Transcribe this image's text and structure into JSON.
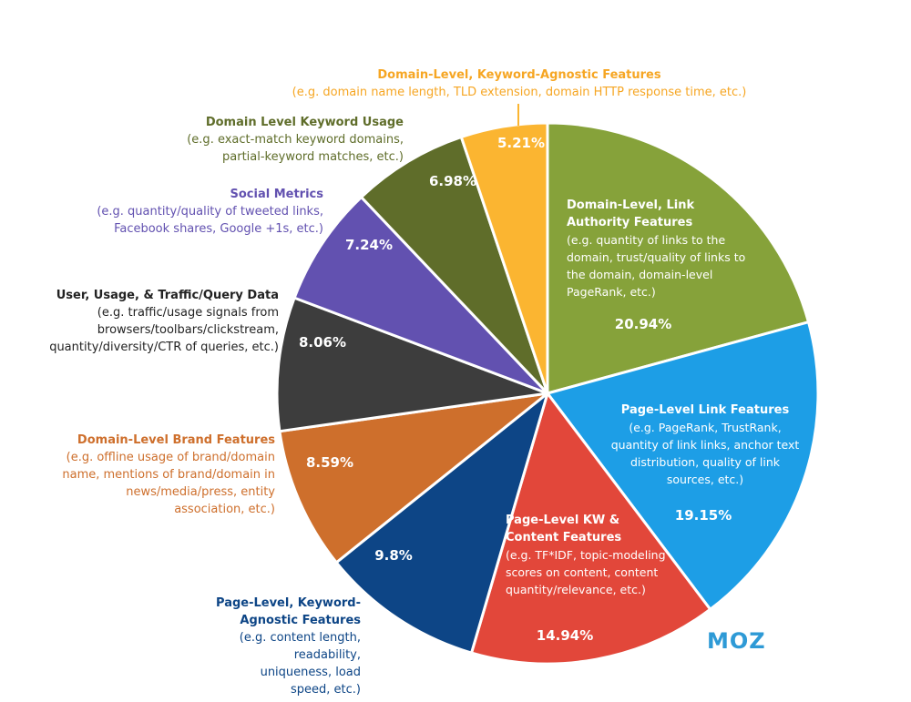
{
  "chart_data": {
    "type": "pie",
    "start_angle_deg": 0,
    "direction": "clockwise",
    "slices": [
      {
        "title": "Domain-Level, Link Authority Features",
        "description": "(e.g. quantity of links to the domain, trust/quality of links to the domain, domain-level PageRank, etc.)",
        "value": 20.94,
        "value_label": "20.94%",
        "color": "#86a23a"
      },
      {
        "title": "Page-Level Link Features",
        "description": "(e.g. PageRank, TrustRank, quantity of link links, anchor text distribution, quality of link sources, etc.)",
        "value": 19.15,
        "value_label": "19.15%",
        "color": "#1d9ee6"
      },
      {
        "title": "Page-Level KW & Content Features",
        "description": "(e.g. TF*IDF, topic-modeling scores on content, content quantity/relevance, etc.)",
        "value": 14.94,
        "value_label": "14.94%",
        "color": "#e2473a"
      },
      {
        "title": "Page-Level, Keyword-Agnostic Features",
        "description": "(e.g. content length, readability, uniqueness, load speed, etc.)",
        "value": 9.8,
        "value_label": "9.8%",
        "color": "#0d4586"
      },
      {
        "title": "Domain-Level Brand Features",
        "description": "(e.g. offline usage of brand/domain name, mentions of brand/domain in news/media/press, entity association, etc.)",
        "value": 8.59,
        "value_label": "8.59%",
        "color": "#ce6f2c"
      },
      {
        "title": "User, Usage, & Traffic/Query Data",
        "description": "(e.g. traffic/usage signals from browsers/toolbars/clickstream, quantity/diversity/CTR of queries, etc.)",
        "value": 8.06,
        "value_label": "8.06%",
        "color": "#3d3d3d"
      },
      {
        "title": "Social Metrics",
        "description": "(e.g. quantity/quality of tweeted links, Facebook shares, Google +1s, etc.)",
        "value": 7.24,
        "value_label": "7.24%",
        "color": "#6251b0"
      },
      {
        "title": "Domain Level Keyword Usage",
        "description": "(e.g. exact-match keyword domains, partial-keyword matches, etc.)",
        "value": 6.98,
        "value_label": "6.98%",
        "color": "#5f6d2a"
      },
      {
        "title": "Domain-Level, Keyword-Agnostic Features",
        "description": "(e.g. domain name length, TLD extension, domain HTTP response time, etc.)",
        "value": 5.21,
        "value_label": "5.21%",
        "color": "#fbb531"
      }
    ],
    "label_colors": {
      "domain_keyword_agnostic": "#f6a623",
      "domain_keyword_usage": "#5f6d2a",
      "social_metrics": "#6251b0",
      "user_usage": "#222222",
      "brand": "#ce6f2c",
      "page_keyword_agnostic": "#0d4586"
    }
  },
  "logo": {
    "text": "MOZ",
    "color": "#2e9ad6"
  }
}
